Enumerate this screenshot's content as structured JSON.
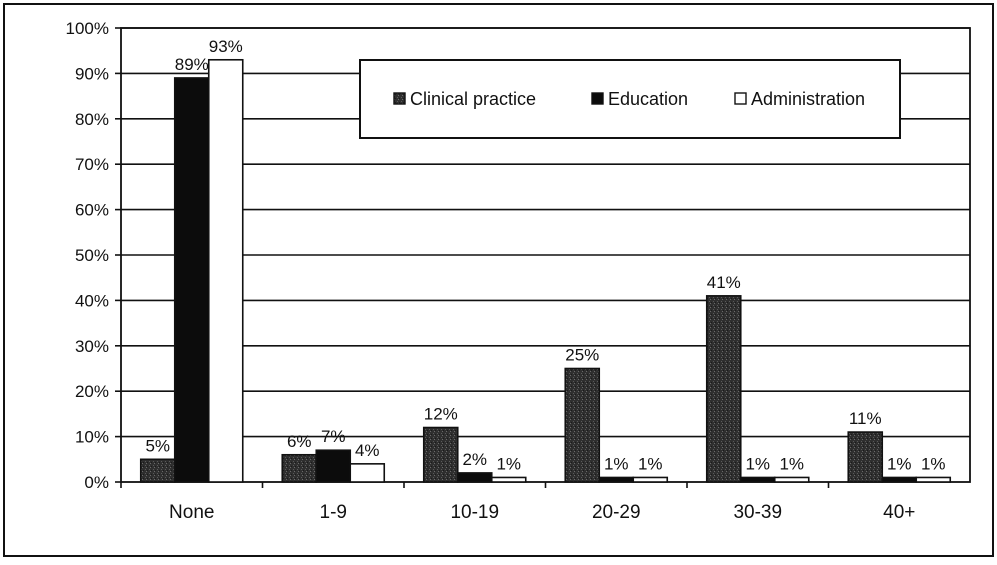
{
  "chart_data": {
    "type": "bar",
    "categories": [
      "None",
      "1-9",
      "10-19",
      "20-29",
      "30-39",
      "40+"
    ],
    "series": [
      {
        "name": "Clinical practice",
        "values": [
          5,
          6,
          12,
          25,
          41,
          11
        ],
        "labels": [
          "5%",
          "6%",
          "12%",
          "25%",
          "41%",
          "11%"
        ],
        "color": "#3a3a3a",
        "pattern": "speckled-dark"
      },
      {
        "name": "Education",
        "values": [
          89,
          7,
          2,
          1,
          1,
          1
        ],
        "labels": [
          "89%",
          "7%",
          "2%",
          "1%",
          "1%",
          "1%"
        ],
        "color": "#0c0c0c",
        "pattern": "solid-black"
      },
      {
        "name": "Administration",
        "values": [
          93,
          4,
          1,
          1,
          1,
          1
        ],
        "labels": [
          "93%",
          "4%",
          "1%",
          "1%",
          "1%",
          "1%"
        ],
        "color": "#ffffff",
        "pattern": "white-outlined"
      }
    ],
    "y_ticks": [
      "0%",
      "10%",
      "20%",
      "30%",
      "40%",
      "50%",
      "60%",
      "70%",
      "80%",
      "90%",
      "100%"
    ],
    "ylim": [
      0,
      100
    ],
    "grid": true,
    "legend_position": "top-right",
    "title": "",
    "xlabel": "",
    "ylabel": ""
  }
}
